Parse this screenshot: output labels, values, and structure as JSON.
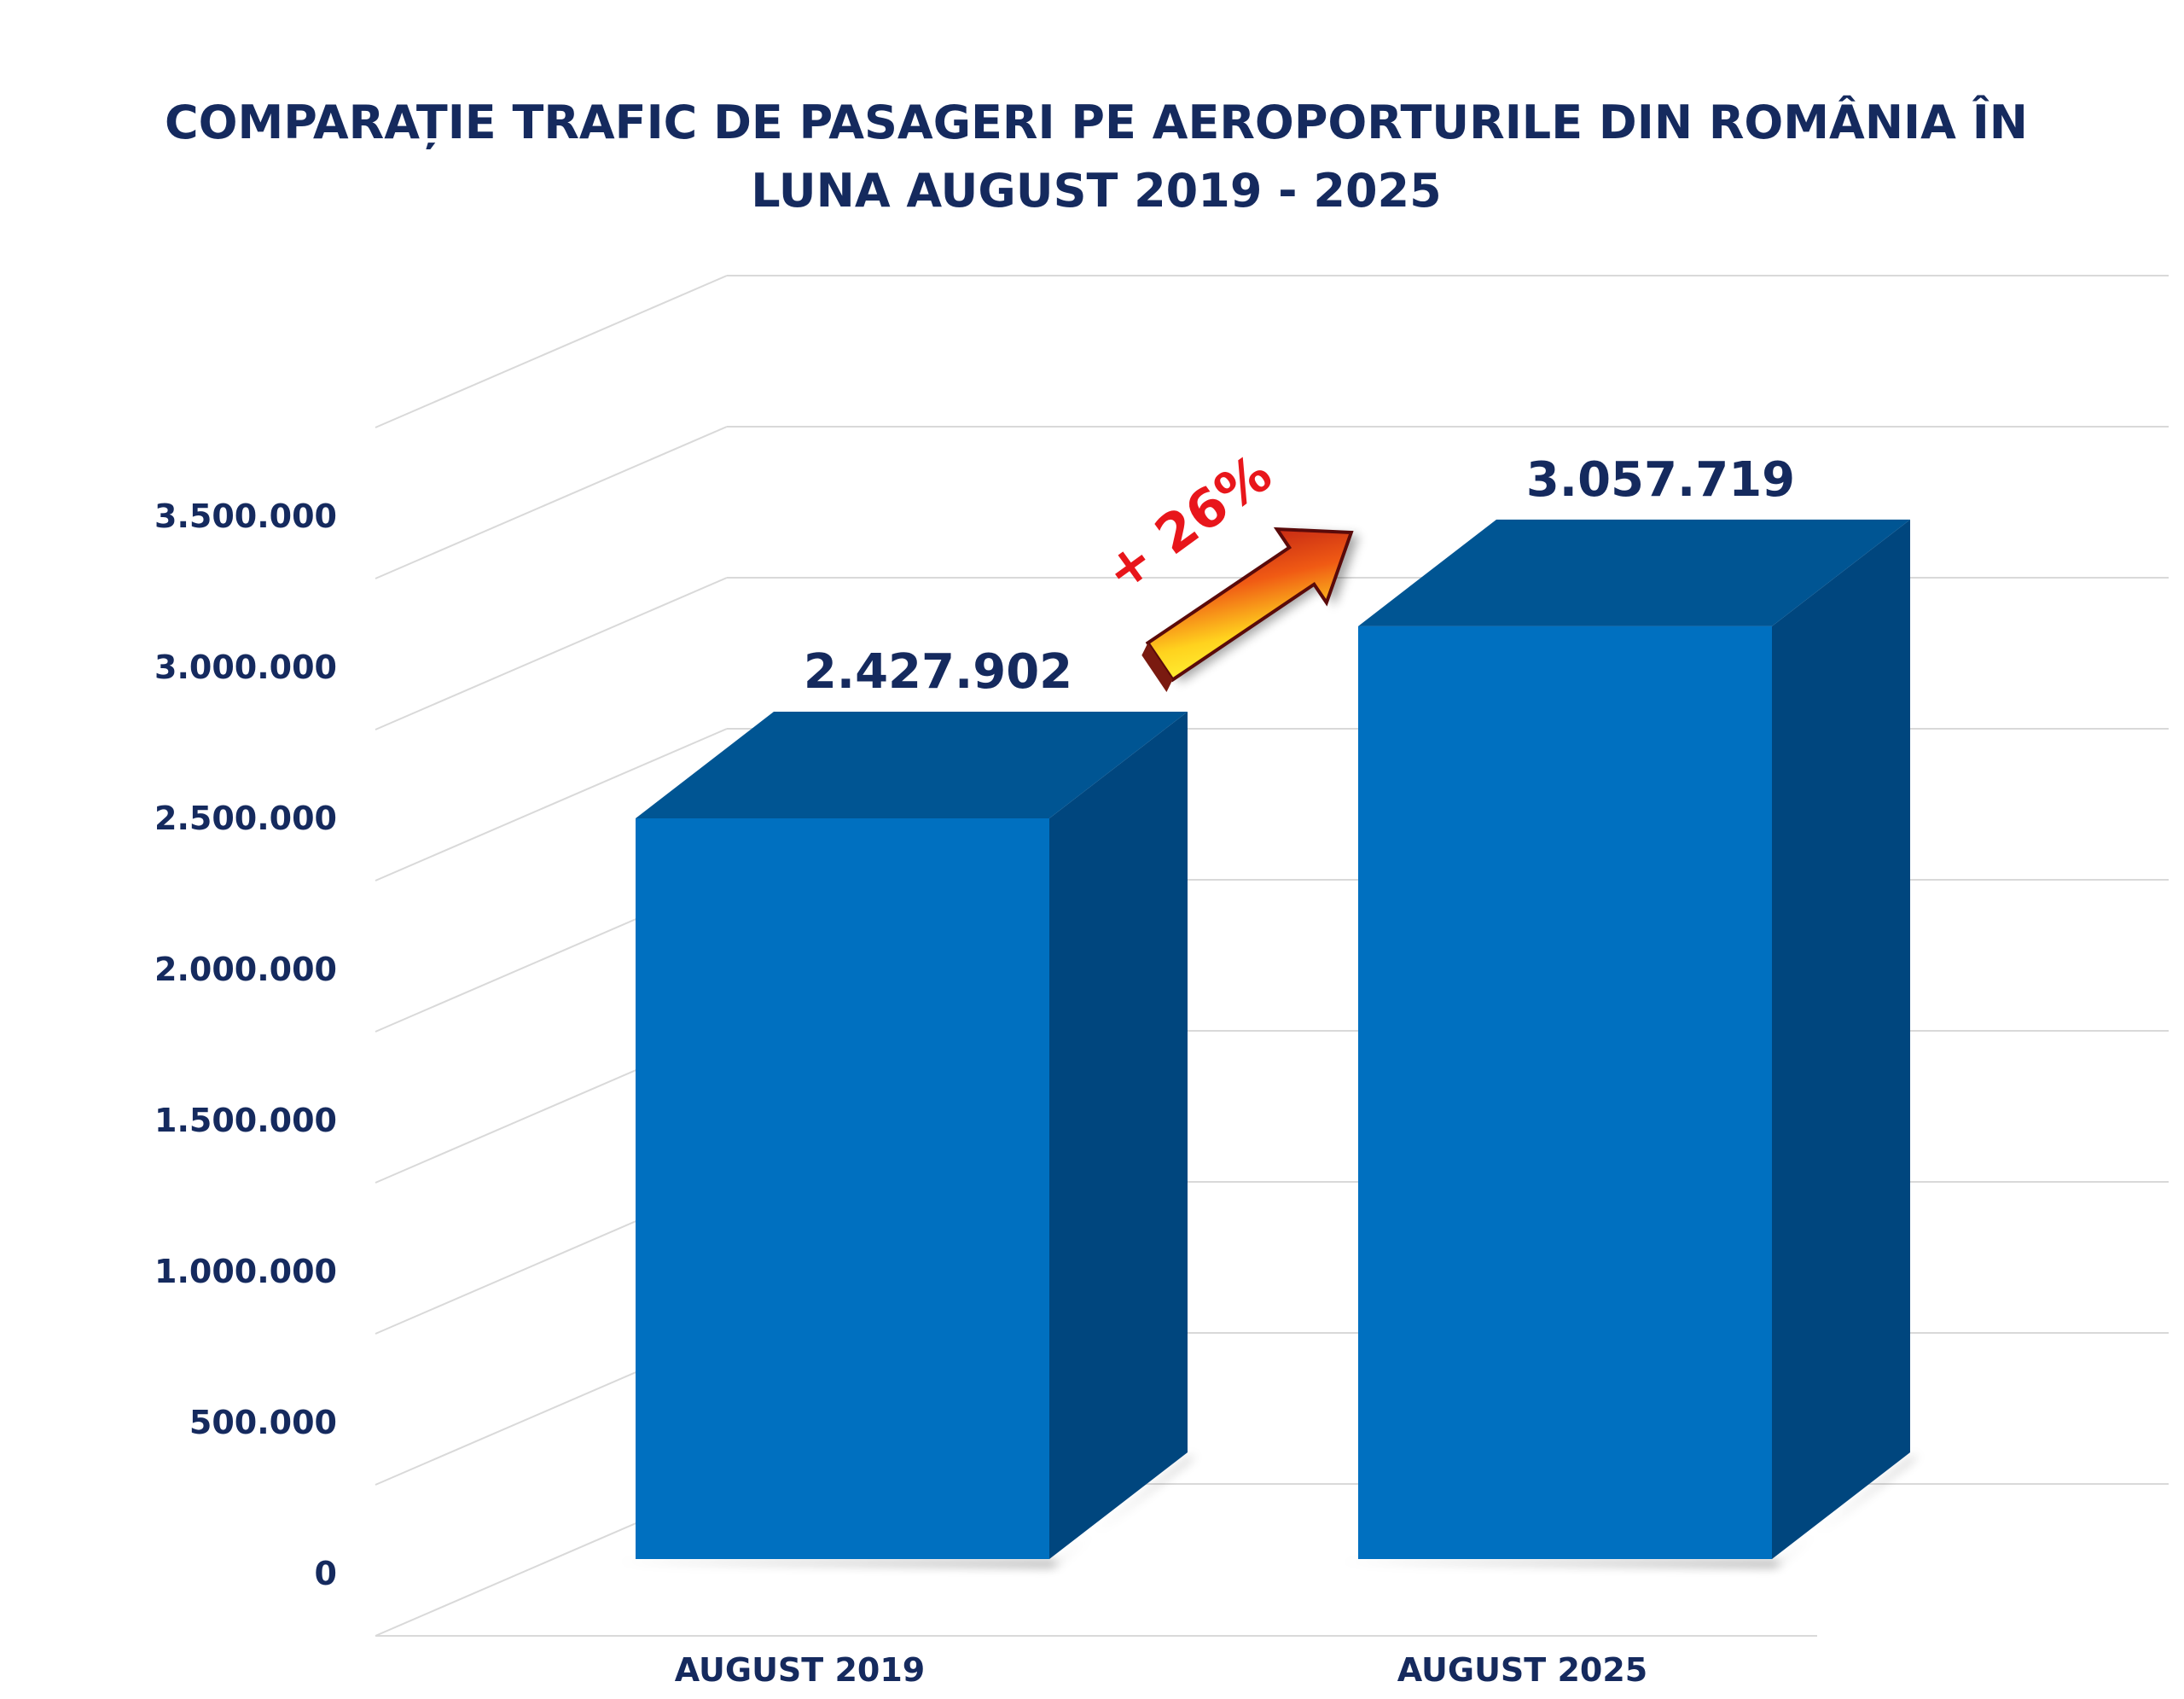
{
  "chart_data": {
    "type": "bar",
    "title": "COMPARAȚIE TRAFIC DE PASAGERI PE AEROPORTURILE DIN ROMÂNIA ÎN LUNA AUGUST 2019 - 2025",
    "title_lines": [
      "COMPARAȚIE TRAFIC DE PASAGERI PE AEROPORTURILE DIN ROMÂNIA ÎN",
      "LUNA AUGUST 2019 - 2025"
    ],
    "categories": [
      "AUGUST 2019",
      "AUGUST 2025"
    ],
    "values": [
      2427902,
      3057719
    ],
    "data_labels": [
      "2.427.902",
      "3.057.719"
    ],
    "y_ticks": [
      0,
      500000,
      1000000,
      1500000,
      2000000,
      2500000,
      3000000,
      3500000
    ],
    "y_tick_labels": [
      "0",
      "500.000",
      "1.000.000",
      "1.500.000",
      "2.000.000",
      "2.500.000",
      "3.000.000",
      "3.500.000"
    ],
    "ylim": [
      0,
      4000000
    ],
    "grid": true,
    "style": "3d-column",
    "annotation": "+ 26%",
    "colors": {
      "bar_front": "#0070C0",
      "bar_top": "#005593",
      "bar_side": "#00467E",
      "text": "#152A5E",
      "annotation": "#E8161B",
      "grid": "#D9D9D9"
    }
  }
}
